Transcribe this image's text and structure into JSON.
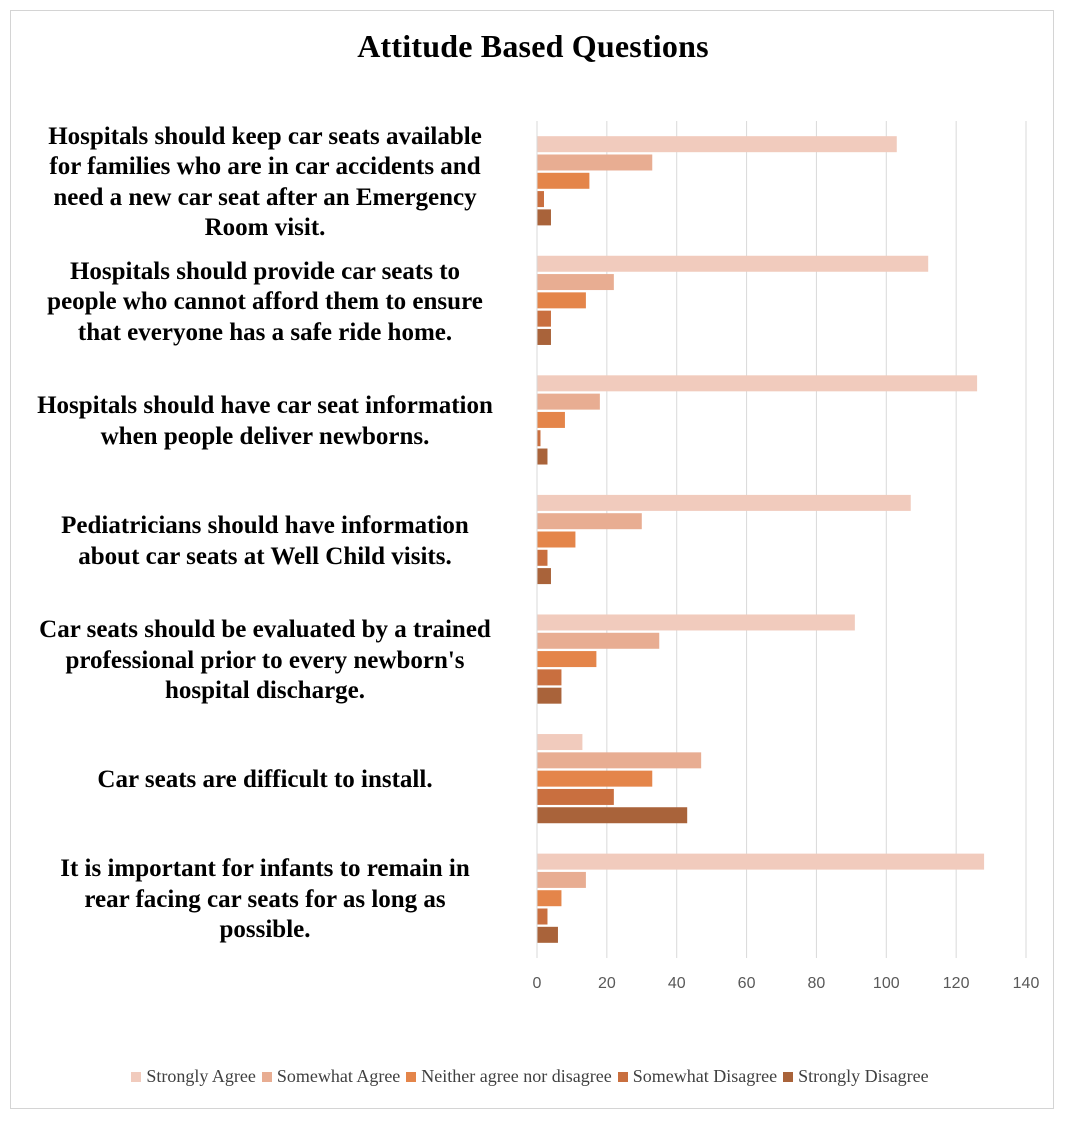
{
  "chart_data": {
    "type": "bar",
    "orientation": "horizontal",
    "title": "Attitude Based Questions",
    "categories": [
      "Hospitals should keep car seats available for families who are in car accidents and need a new car seat after an Emergency Room visit.",
      "Hospitals should provide car seats to people who cannot afford them to ensure that everyone has a safe ride home.",
      "Hospitals should have car seat information when people deliver newborns.",
      "Pediatricians should have information about car seats at Well Child visits.",
      "Car seats should be evaluated by a trained professional prior to every newborn's hospital discharge.",
      "Car seats are difficult to install.",
      "It is important for infants to remain in rear facing car seats for as long as possible."
    ],
    "category_lines": [
      [
        "Hospitals should keep car seats available",
        "for families who are in car accidents and",
        "need a new car seat after an Emergency",
        "Room visit."
      ],
      [
        "Hospitals should provide car seats to",
        "people who cannot afford them to ensure",
        "that everyone has a safe ride home."
      ],
      [
        "Hospitals should have car seat information",
        "when people deliver newborns."
      ],
      [
        "Pediatricians should have information",
        "about car seats at Well Child visits."
      ],
      [
        "Car seats should be evaluated by a trained",
        "professional prior to every newborn's",
        "hospital discharge."
      ],
      [
        "Car seats are difficult to install."
      ],
      [
        "It is important for infants to remain in",
        "rear facing car seats for as long as",
        "possible."
      ]
    ],
    "series": [
      {
        "name": "Strongly Agree",
        "color": "#f1cbbd",
        "values": [
          103,
          112,
          126,
          107,
          91,
          13,
          128
        ]
      },
      {
        "name": "Somewhat Agree",
        "color": "#e8ad92",
        "values": [
          33,
          22,
          18,
          30,
          35,
          47,
          14
        ]
      },
      {
        "name": "Neither agree nor disagree",
        "color": "#e4854a",
        "values": [
          15,
          14,
          8,
          11,
          17,
          33,
          7
        ]
      },
      {
        "name": "Somewhat Disagree",
        "color": "#c96f3f",
        "values": [
          2,
          4,
          1,
          3,
          7,
          22,
          3
        ]
      },
      {
        "name": "Strongly Disagree",
        "color": "#a9633a",
        "values": [
          4,
          4,
          3,
          4,
          7,
          43,
          6
        ]
      }
    ],
    "xlim": [
      0,
      140
    ],
    "xticks": [
      0,
      20,
      40,
      60,
      80,
      100,
      120,
      140
    ],
    "grid": true,
    "legend_position": "bottom"
  }
}
